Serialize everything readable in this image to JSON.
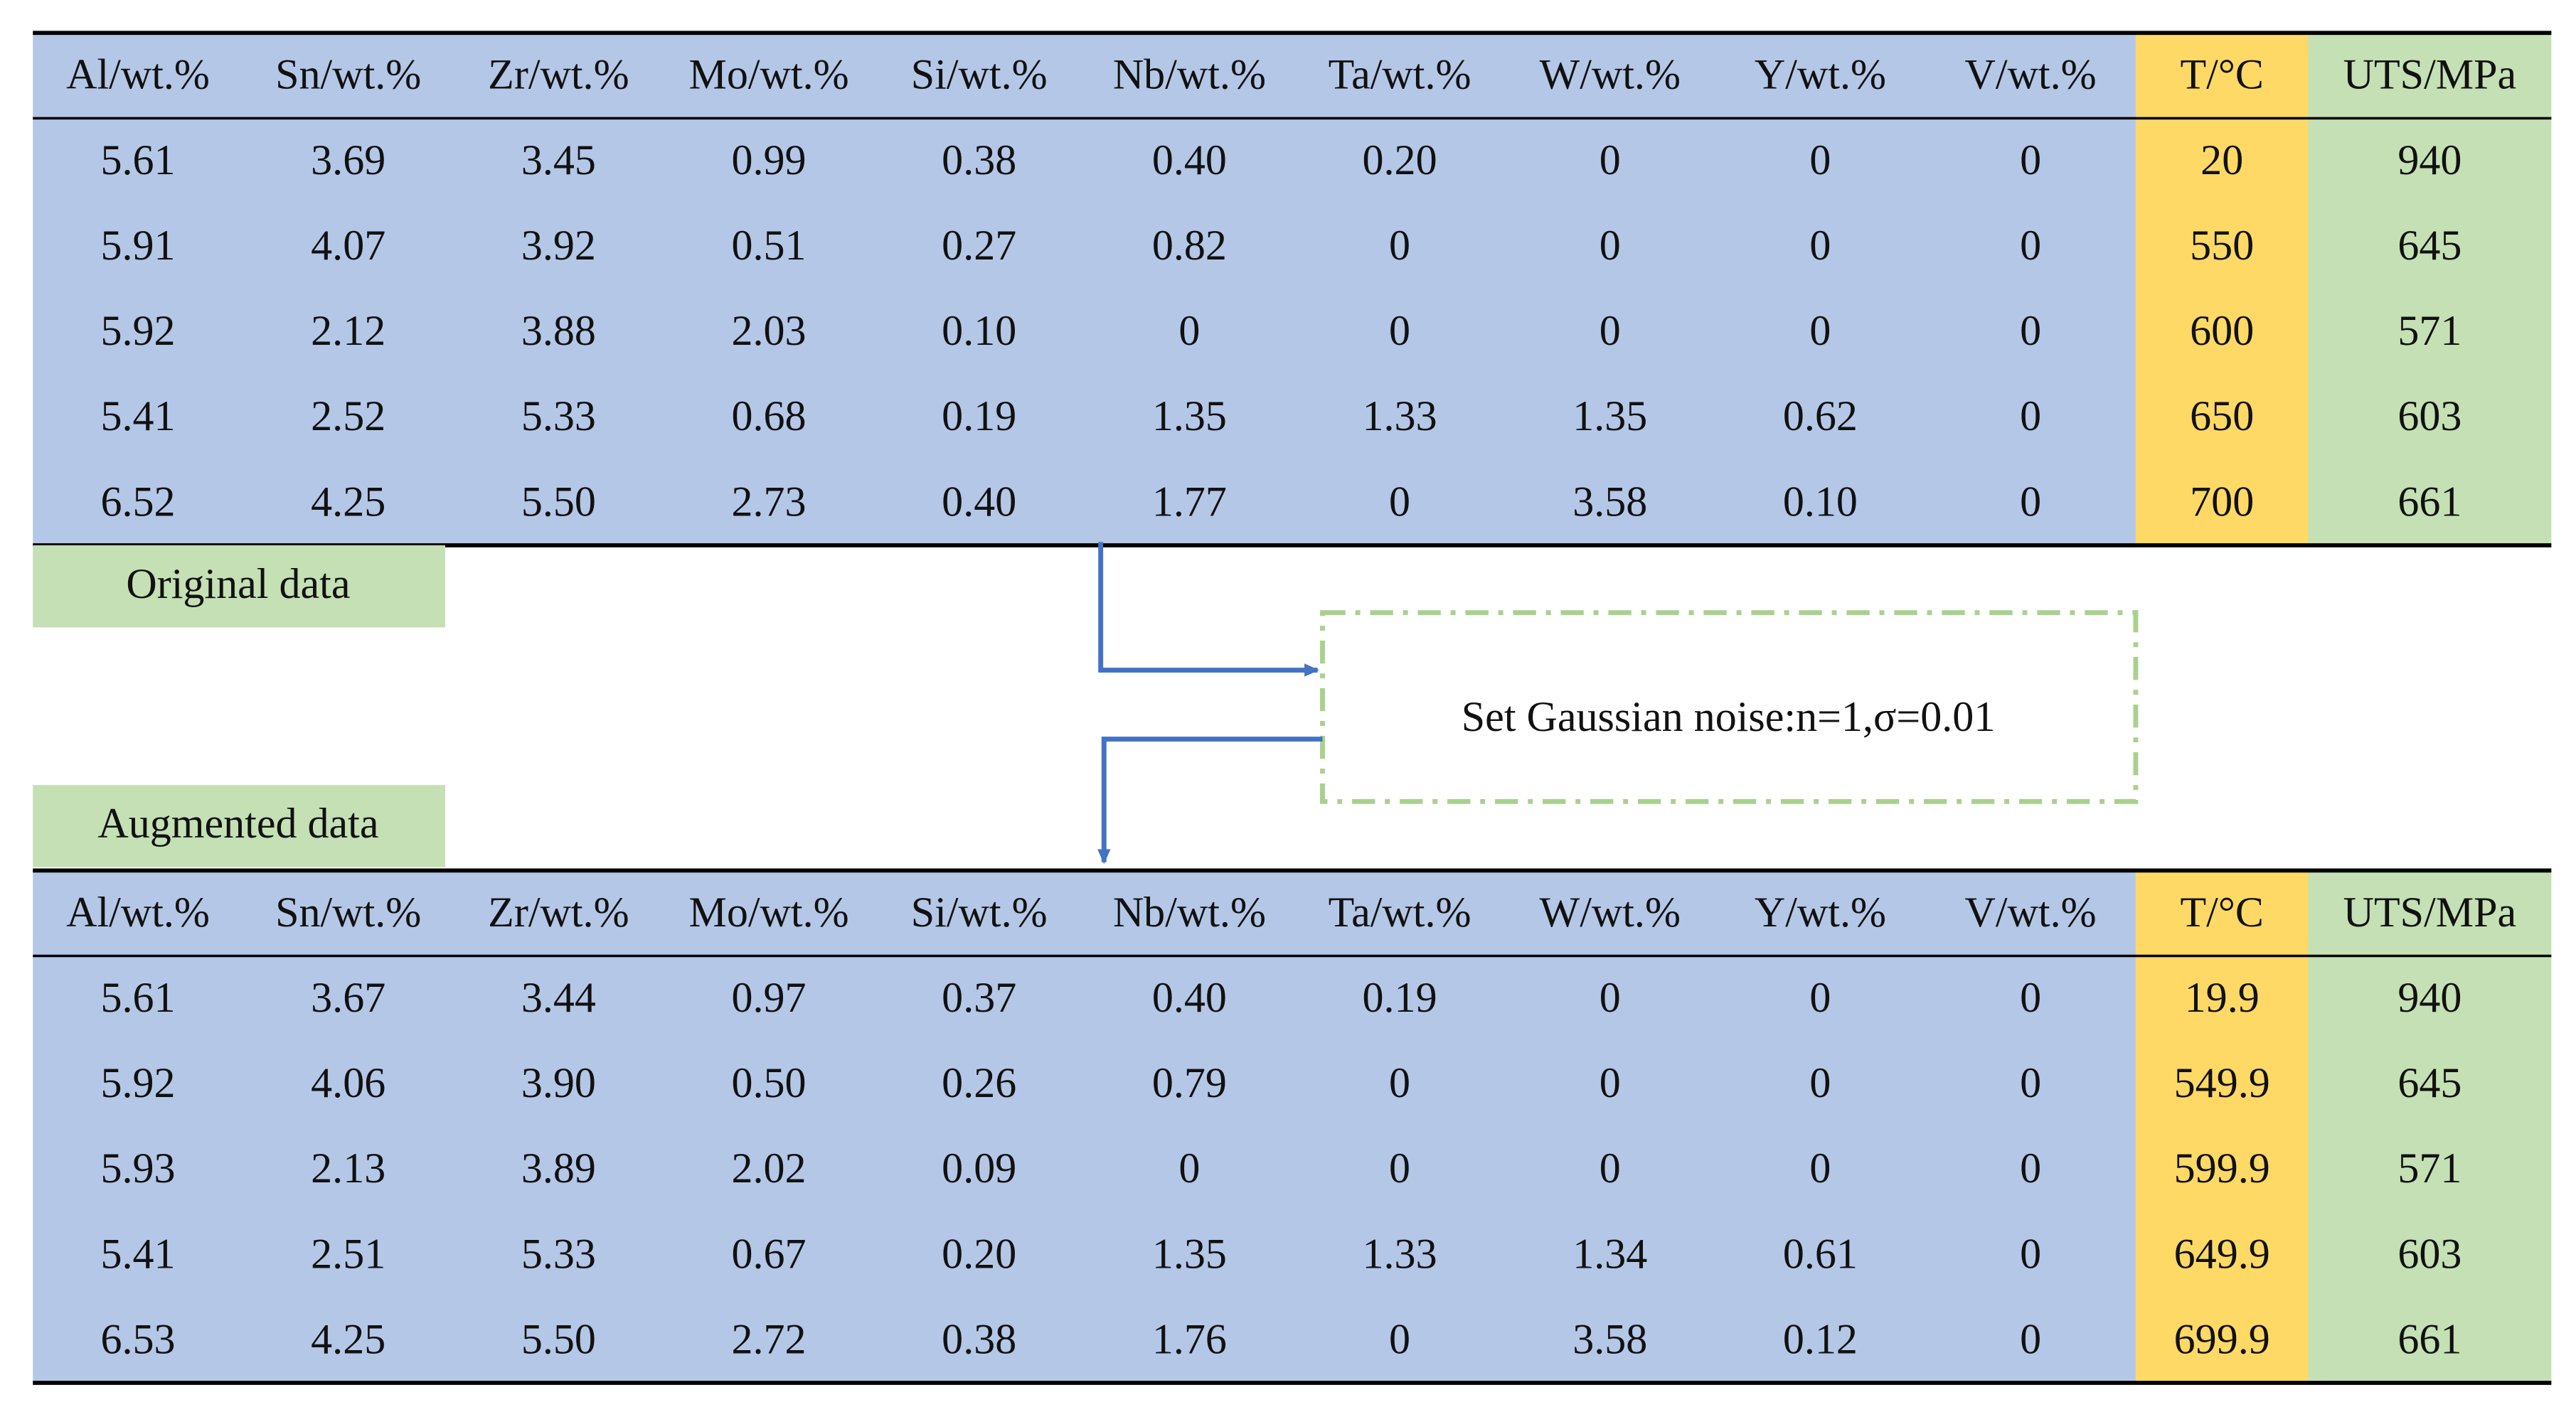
{
  "original_table": {
    "header": [
      "Al/wt.%",
      "Sn/wt.%",
      "Zr/wt.%",
      "Mo/wt.%",
      "Si/wt.%",
      "Nb/wt.%",
      "Ta/wt.%",
      "W/wt.%",
      "Y/wt.%",
      "V/wt.%",
      "T/°C",
      "UTS/MPa"
    ],
    "rows": [
      [
        "5.61",
        "3.69",
        "3.45",
        "0.99",
        "0.38",
        "0.40",
        "0.20",
        "0",
        "0",
        "0",
        "20",
        "940"
      ],
      [
        "5.91",
        "4.07",
        "3.92",
        "0.51",
        "0.27",
        "0.82",
        "0",
        "0",
        "0",
        "0",
        "550",
        "645"
      ],
      [
        "5.92",
        "2.12",
        "3.88",
        "2.03",
        "0.10",
        "0",
        "0",
        "0",
        "0",
        "0",
        "600",
        "571"
      ],
      [
        "5.41",
        "2.52",
        "5.33",
        "0.68",
        "0.19",
        "1.35",
        "1.33",
        "1.35",
        "0.62",
        "0",
        "650",
        "603"
      ],
      [
        "6.52",
        "4.25",
        "5.50",
        "2.73",
        "0.40",
        "1.77",
        "0",
        "3.58",
        "0.10",
        "0",
        "700",
        "661"
      ]
    ]
  },
  "original_label": "Original data",
  "noise_box": "Set Gaussian noise:n=1,σ=0.01",
  "augmented_label": "Augmented data",
  "augmented_table": {
    "header": [
      "Al/wt.%",
      "Sn/wt.%",
      "Zr/wt.%",
      "Mo/wt.%",
      "Si/wt.%",
      "Nb/wt.%",
      "Ta/wt.%",
      "W/wt.%",
      "Y/wt.%",
      "V/wt.%",
      "T/°C",
      "UTS/MPa"
    ],
    "rows": [
      [
        "5.61",
        "3.67",
        "3.44",
        "0.97",
        "0.37",
        "0.40",
        "0.19",
        "0",
        "0",
        "0",
        "19.9",
        "940"
      ],
      [
        "5.92",
        "4.06",
        "3.90",
        "0.50",
        "0.26",
        "0.79",
        "0",
        "0",
        "0",
        "0",
        "549.9",
        "645"
      ],
      [
        "5.93",
        "2.13",
        "3.89",
        "2.02",
        "0.09",
        "0",
        "0",
        "0",
        "0",
        "0",
        "599.9",
        "571"
      ],
      [
        "5.41",
        "2.51",
        "5.33",
        "0.67",
        "0.20",
        "1.35",
        "1.33",
        "1.34",
        "0.61",
        "0",
        "649.9",
        "603"
      ],
      [
        "6.53",
        "4.25",
        "5.50",
        "2.72",
        "0.38",
        "1.76",
        "0",
        "3.58",
        "0.12",
        "0",
        "699.9",
        "661"
      ]
    ]
  }
}
